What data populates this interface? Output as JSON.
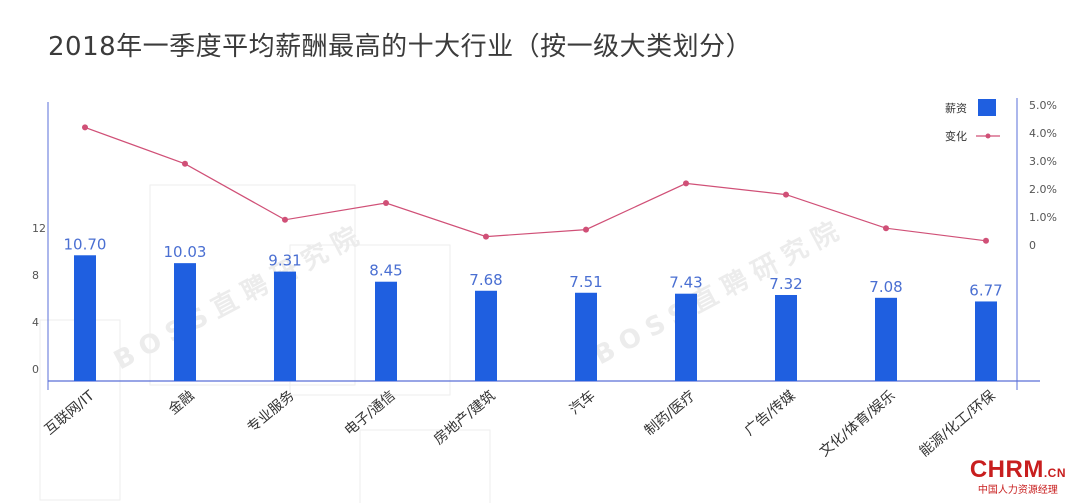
{
  "title": "2018年一季度平均薪酬最高的十大行业（按一级大类划分）",
  "watermark": "BOSS直聘研究院",
  "logo": {
    "main": "CHRM",
    "suffix": ".CN",
    "sub": "中国人力资源经理"
  },
  "colors": {
    "bar": "#1f5fe0",
    "line": "#d05077",
    "axis": "#5a6fd8",
    "label": "#4a6fd2"
  },
  "chart_data": {
    "type": "bar",
    "categories": [
      "互联网/IT",
      "金融",
      "专业服务",
      "电子/通信",
      "房地产/建筑",
      "汽车",
      "制药/医疗",
      "广告/传媒",
      "文化/体育/娱乐",
      "能源/化工/环保"
    ],
    "series": [
      {
        "name": "薪资",
        "type": "bar",
        "axis": "left",
        "values": [
          10.7,
          10.03,
          9.31,
          8.45,
          7.68,
          7.51,
          7.43,
          7.32,
          7.08,
          6.77
        ]
      },
      {
        "name": "变化",
        "type": "line",
        "axis": "right",
        "values": [
          4.2,
          2.9,
          0.9,
          1.5,
          0.3,
          0.55,
          2.2,
          1.8,
          0.6,
          0.15
        ]
      }
    ],
    "y_left": {
      "ticks": [
        "0",
        "4",
        "8",
        "12"
      ],
      "range": [
        0,
        12
      ]
    },
    "y_right": {
      "ticks": [
        "0",
        "1.0%",
        "2.0%",
        "3.0%",
        "4.0%",
        "5.0%"
      ],
      "range": [
        0,
        5
      ]
    },
    "legend": {
      "position": "top-right",
      "entries": [
        "薪资",
        "变化"
      ]
    }
  }
}
